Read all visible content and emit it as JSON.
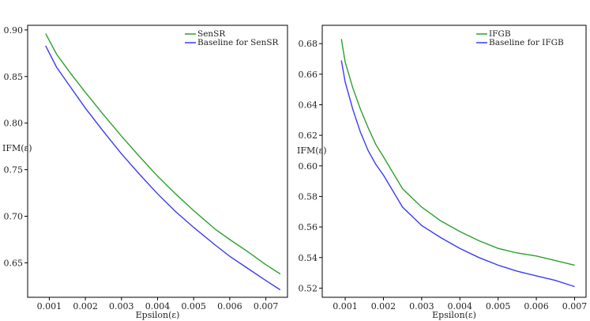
{
  "chart_data": [
    {
      "type": "line",
      "xlabel": "Epsilon(ε)",
      "ylabel": "IFM(ε)",
      "xlim": [
        0.0004,
        0.0076
      ],
      "ylim": [
        0.613,
        0.905
      ],
      "xticks": [
        0.001,
        0.002,
        0.003,
        0.004,
        0.005,
        0.006,
        0.007
      ],
      "xtick_labels": [
        "0.001",
        "0.002",
        "0.003",
        "0.004",
        "0.005",
        "0.006",
        "0.007"
      ],
      "yticks": [
        0.65,
        0.7,
        0.75,
        0.8,
        0.85,
        0.9
      ],
      "ytick_labels": [
        "0.65",
        "0.70",
        "0.75",
        "0.80",
        "0.85",
        "0.90"
      ],
      "legend_position": "top-right",
      "grid": false,
      "series": [
        {
          "name": "SenSR",
          "color": "#2ca02c",
          "x": [
            0.0009,
            0.0012,
            0.0016,
            0.002,
            0.0025,
            0.003,
            0.0035,
            0.004,
            0.0045,
            0.005,
            0.0056,
            0.006,
            0.0065,
            0.007,
            0.0074
          ],
          "y": [
            0.896,
            0.874,
            0.853,
            0.833,
            0.809,
            0.786,
            0.764,
            0.743,
            0.724,
            0.706,
            0.686,
            0.675,
            0.662,
            0.648,
            0.638
          ]
        },
        {
          "name": "Baseline for SenSR",
          "color": "#3b3bf5",
          "x": [
            0.0009,
            0.0012,
            0.0016,
            0.002,
            0.0025,
            0.003,
            0.0035,
            0.004,
            0.0045,
            0.005,
            0.0056,
            0.006,
            0.0065,
            0.007,
            0.0074
          ],
          "y": [
            0.883,
            0.86,
            0.838,
            0.816,
            0.791,
            0.767,
            0.745,
            0.724,
            0.705,
            0.688,
            0.669,
            0.657,
            0.644,
            0.631,
            0.621
          ]
        }
      ]
    },
    {
      "type": "line",
      "xlabel": "Epsilon(ε)",
      "ylabel": "IFM(ε)",
      "xlim": [
        0.0004,
        0.0073
      ],
      "ylim": [
        0.514,
        0.692
      ],
      "xticks": [
        0.001,
        0.002,
        0.003,
        0.004,
        0.005,
        0.006,
        0.007
      ],
      "xtick_labels": [
        "0.001",
        "0.002",
        "0.003",
        "0.004",
        "0.005",
        "0.006",
        "0.007"
      ],
      "yticks": [
        0.52,
        0.54,
        0.56,
        0.58,
        0.6,
        0.62,
        0.64,
        0.66,
        0.68
      ],
      "ytick_labels": [
        "0.52",
        "0.54",
        "0.56",
        "0.58",
        "0.60",
        "0.62",
        "0.64",
        "0.66",
        "0.68"
      ],
      "legend_position": "top-right",
      "grid": false,
      "series": [
        {
          "name": "IFGB",
          "color": "#2ca02c",
          "x": [
            0.0009,
            0.001,
            0.0012,
            0.0014,
            0.0016,
            0.0018,
            0.002,
            0.0025,
            0.003,
            0.0035,
            0.004,
            0.0045,
            0.005,
            0.0055,
            0.006,
            0.0065,
            0.007
          ],
          "y": [
            0.683,
            0.668,
            0.651,
            0.637,
            0.625,
            0.614,
            0.606,
            0.585,
            0.573,
            0.564,
            0.557,
            0.551,
            0.546,
            0.543,
            0.541,
            0.538,
            0.535
          ]
        },
        {
          "name": "Baseline for IFGB",
          "color": "#3b3bf5",
          "x": [
            0.0009,
            0.001,
            0.0012,
            0.0014,
            0.0016,
            0.0018,
            0.002,
            0.0025,
            0.003,
            0.0035,
            0.004,
            0.0045,
            0.005,
            0.0055,
            0.006,
            0.0065,
            0.007
          ],
          "y": [
            0.669,
            0.655,
            0.637,
            0.622,
            0.61,
            0.601,
            0.594,
            0.573,
            0.561,
            0.553,
            0.546,
            0.54,
            0.535,
            0.531,
            0.528,
            0.525,
            0.521
          ]
        }
      ]
    }
  ]
}
